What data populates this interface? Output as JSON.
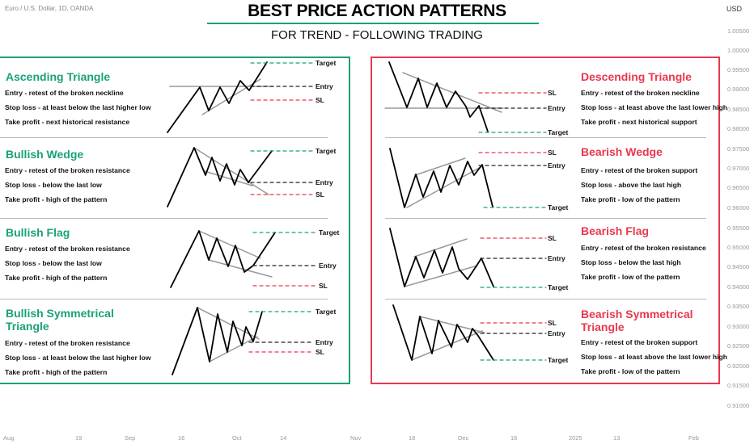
{
  "header": {
    "symbol": "Euro / U.S. Dollar, 1D, OANDA",
    "currency": "USD",
    "title": "BEST PRICE ACTION PATTERNS",
    "subtitle": "FOR TREND - FOLLOWING TRADING"
  },
  "price_axis": [
    "1.00500",
    "1.00000",
    "0.99500",
    "0.99000",
    "0.98500",
    "0.98000",
    "0.97500",
    "0.97000",
    "0.96500",
    "0.96000",
    "0.95500",
    "0.95000",
    "0.94500",
    "0.94000",
    "0.93500",
    "0.93000",
    "0.92500",
    "0.92000",
    "0.91500",
    "0.91000"
  ],
  "time_axis": [
    "Aug",
    "19",
    "Sep",
    "16",
    "Oct",
    "14",
    "Nov",
    "18",
    "Dec",
    "16",
    "2025",
    "13",
    "Feb"
  ],
  "labels": {
    "target": "Target",
    "entry": "Entry",
    "sl": "SL"
  },
  "bullish": [
    {
      "title": "Ascending Triangle",
      "lines": [
        "Entry - retest of the broken neckline",
        "Stop loss - at least below the last higher low",
        "Take profit - next historical resistance"
      ]
    },
    {
      "title": "Bullish Wedge",
      "lines": [
        "Entry - retest of the broken resistance",
        "Stop loss - below the last low",
        "Take profit - high of the pattern"
      ]
    },
    {
      "title": "Bullish Flag",
      "lines": [
        "Entry - retest of the broken resistance",
        "Stop loss - below the last low",
        "Take profit - high of the pattern"
      ]
    },
    {
      "title": "Bullish Symmetrical Triangle",
      "title_line1": "Bullish Symmetrical",
      "title_line2": "Triangle",
      "lines": [
        "Entry - retest of the broken resistance",
        "Stop loss - at least below the last higher low",
        "Take profit - high of the pattern"
      ]
    }
  ],
  "bearish": [
    {
      "title": "Descending Triangle",
      "lines": [
        "Entry - retest of the broken neckline",
        "Stop loss - at least above the last lower high",
        "Take profit - next historical support"
      ]
    },
    {
      "title": "Bearish Wedge",
      "lines": [
        "Entry - retest of the broken support",
        "Stop loss - above the last high",
        "Take profit - low of the pattern"
      ]
    },
    {
      "title": "Bearish Flag",
      "lines": [
        "Entry - retest of the broken resistance",
        "Stop loss - below the last high",
        "Take profit - low of the pattern"
      ]
    },
    {
      "title": "Bearish Symmetrical Triangle",
      "title_line1": "Bearish Symmetrical",
      "title_line2": "Triangle",
      "lines": [
        "Entry - retest of the broken support",
        "Stop loss - at least above the last lower high",
        "Take profit - low of the pattern"
      ]
    }
  ],
  "colors": {
    "bullish": "#1aa17a",
    "bearish": "#e8384f",
    "entry": "#222222",
    "pattern_line": "#999999",
    "price_line": "#000000"
  }
}
